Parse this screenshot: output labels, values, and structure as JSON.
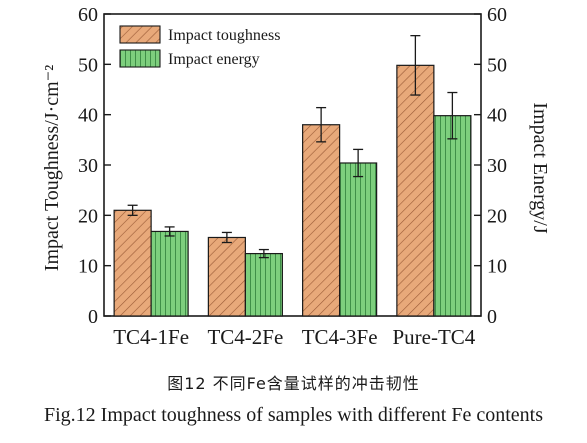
{
  "chart_data": {
    "type": "bar",
    "categories": [
      "TC4-1Fe",
      "TC4-2Fe",
      "TC4-3Fe",
      "Pure-TC4"
    ],
    "series": [
      {
        "name": "Impact toughness",
        "axis": "left",
        "values": [
          21.0,
          15.6,
          38.0,
          49.8
        ],
        "errors": [
          1.0,
          1.0,
          3.4,
          5.9
        ],
        "color": "#e8a97a",
        "pattern": "diagonal-hatch"
      },
      {
        "name": "Impact energy",
        "axis": "right",
        "values": [
          16.8,
          12.4,
          30.4,
          39.8
        ],
        "errors": [
          0.9,
          0.8,
          2.7,
          4.6
        ],
        "color": "#7dcf7d",
        "pattern": "vertical-lines"
      }
    ],
    "ylabel_left": "Impact Toughness/J·cm⁻²",
    "ylabel_right": "Impact Energy/J",
    "ylim_left": [
      0,
      60
    ],
    "ylim_right": [
      0,
      60
    ],
    "yticks_left": [
      "0",
      "10",
      "20",
      "30",
      "40",
      "50",
      "60"
    ],
    "yticks_right": [
      "0",
      "10",
      "20",
      "30",
      "40",
      "50",
      "60"
    ],
    "grid": false,
    "legend_position": "top-left"
  },
  "caption": {
    "chinese": "图12  不同Fe含量试样的冲击韧性",
    "english": "Fig.12  Impact toughness of samples with different Fe contents"
  },
  "colors": {
    "axis": "#1a1a1a",
    "toughness_fill": "#e8a97a",
    "toughness_hatch": "#9a5a36",
    "energy_fill": "#7dcf7d",
    "energy_lines": "#2f7f3a"
  }
}
